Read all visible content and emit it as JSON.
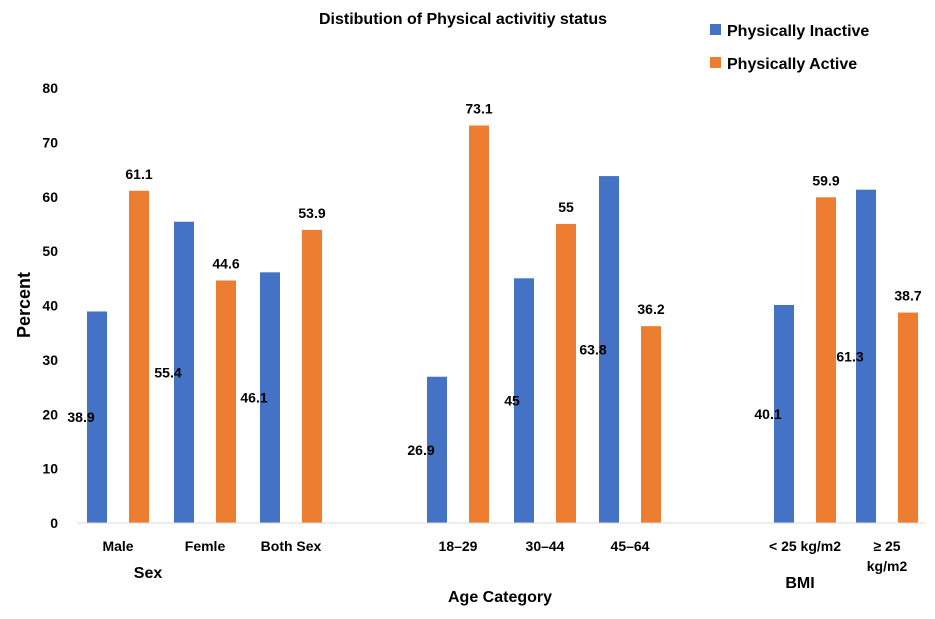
{
  "chart_data": {
    "type": "bar",
    "title": "Distibution of Physical activitiy status",
    "ylabel": "Percent",
    "ylim": [
      0,
      80
    ],
    "yticks": [
      0,
      10,
      20,
      30,
      40,
      50,
      60,
      70,
      80
    ],
    "grid": false,
    "legend_position": "top-right",
    "groups": [
      {
        "label": "Sex",
        "categories": [
          "Male",
          "Femle",
          "Both Sex"
        ]
      },
      {
        "label": "Age Category",
        "categories": [
          "18–29",
          "30–44",
          "45–64"
        ]
      },
      {
        "label": "BMI",
        "categories": [
          "< 25 kg/m2",
          "≥ 25|kg/m2"
        ]
      }
    ],
    "categories": [
      "Male",
      "Femle",
      "Both Sex",
      "18–29",
      "30–44",
      "45–64",
      "< 25 kg/m2",
      "≥ 25 kg/m2"
    ],
    "series": [
      {
        "name": "Physically Inactive",
        "color": "#4472C4",
        "values": [
          38.9,
          55.4,
          46.1,
          26.9,
          45,
          63.8,
          40.1,
          61.3
        ],
        "labels": [
          "38.9",
          "55.4",
          "46.1",
          "26.9",
          "45",
          "63.8",
          "40.1",
          "61.3"
        ]
      },
      {
        "name": "Physically Active",
        "color": "#ED7D31",
        "values": [
          61.1,
          44.6,
          53.9,
          73.1,
          55,
          36.2,
          59.9,
          38.7
        ],
        "labels": [
          "61.1",
          "44.6",
          "53.9",
          "73.1",
          "55",
          "36.2",
          "59.9",
          "38.7"
        ]
      }
    ]
  }
}
